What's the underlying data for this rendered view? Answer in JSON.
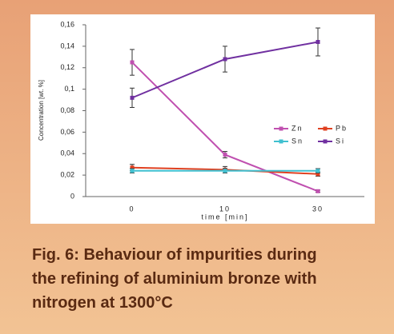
{
  "chart_data": {
    "type": "line",
    "y_label": "Concentration [wt. %]",
    "x_label": "time [min]",
    "categories": [
      "0",
      "10",
      "30"
    ],
    "ylim": [
      0,
      0.16
    ],
    "yticks": [
      0,
      {
        "value": 0.02,
        "label": "0,02"
      },
      {
        "value": 0.04,
        "label": "0,04"
      },
      {
        "value": 0.06,
        "label": "0,06"
      },
      {
        "value": 0.08,
        "label": "0,08"
      },
      {
        "value": 0.1,
        "label": "0,1"
      },
      {
        "value": 0.12,
        "label": "0,12"
      },
      {
        "value": 0.14,
        "label": "0,14"
      },
      {
        "value": 0.16,
        "label": "0,16"
      }
    ],
    "grid": false,
    "legend": "upper-right",
    "series": [
      {
        "name": "Zn",
        "color": "#c050b0",
        "values": [
          0.125,
          0.039,
          0.005
        ],
        "errors": [
          0.012,
          0.003,
          0.001
        ]
      },
      {
        "name": "Pb",
        "color": "#e04020",
        "values": [
          0.027,
          0.025,
          0.021
        ],
        "errors": [
          0.003,
          0.003,
          0.002
        ]
      },
      {
        "name": "Sn",
        "color": "#40c0d0",
        "values": [
          0.024,
          0.024,
          0.024
        ],
        "errors": [
          0.002,
          0.002,
          0.002
        ]
      },
      {
        "name": "Si",
        "color": "#7030a0",
        "values": [
          0.092,
          0.128,
          0.144
        ],
        "errors": [
          0.009,
          0.012,
          0.013
        ]
      }
    ]
  },
  "caption": {
    "lines": [
      "Fig. 6: Behaviour of impurities during",
      "the refining of aluminium bronze with",
      "nitrogen at 1300°C"
    ]
  }
}
